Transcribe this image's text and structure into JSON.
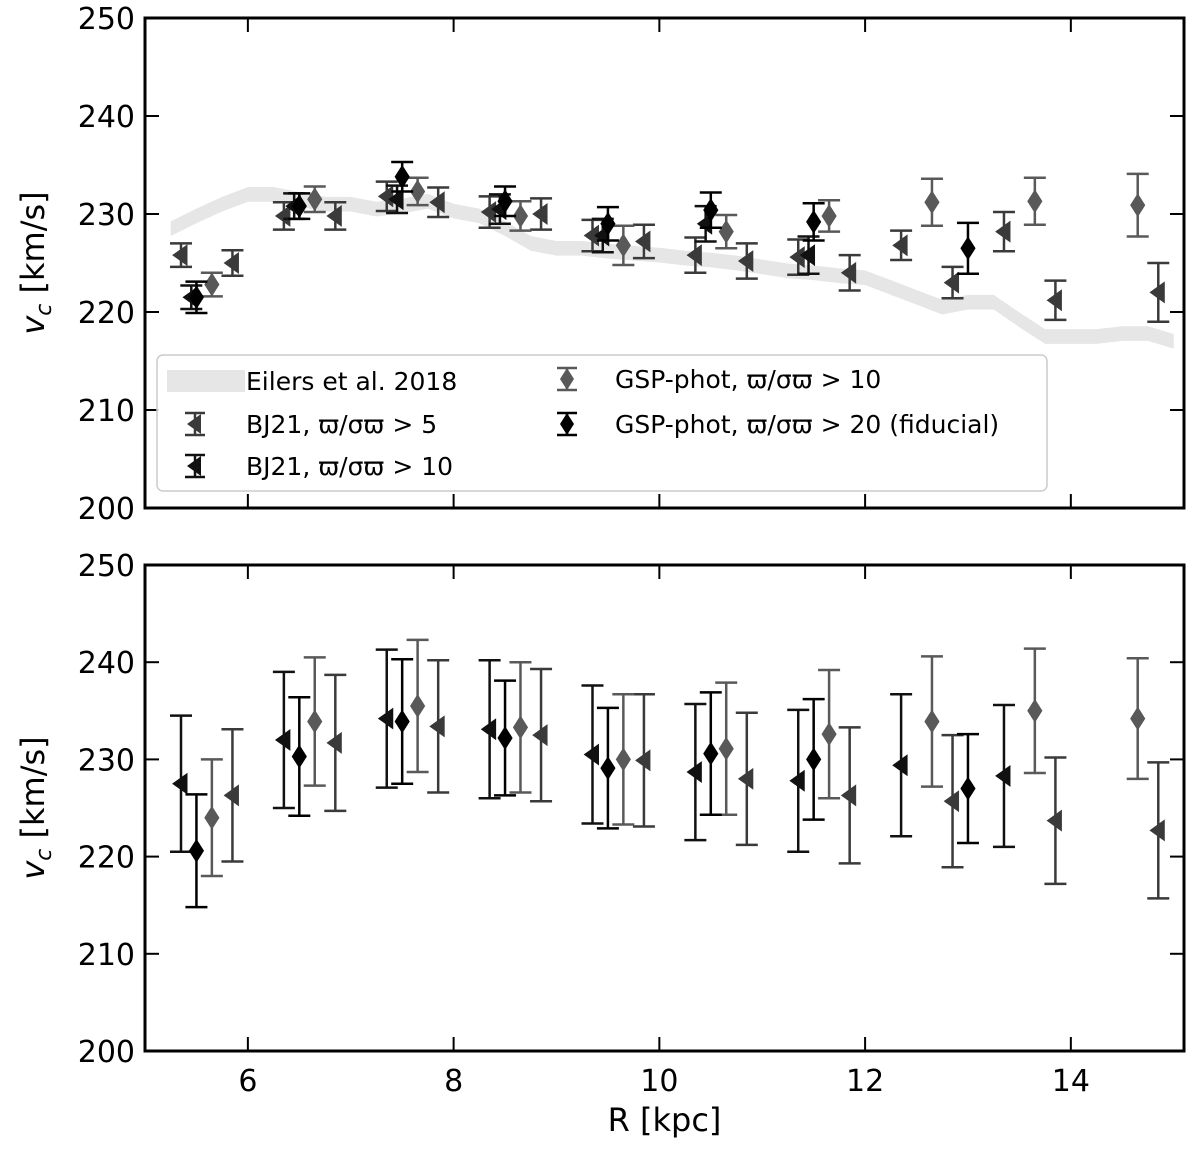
{
  "chart_data": [
    {
      "type": "scatter",
      "panel": "top",
      "xlabel": "",
      "ylabel_main": "v",
      "ylabel_sub": "c",
      "ylabel_unit": " [km/s]",
      "xlim": [
        5.0,
        15.1
      ],
      "ylim": [
        200,
        250
      ],
      "xticks": [
        6,
        8,
        10,
        12,
        14
      ],
      "xtick_labels_visible": false,
      "yticks": [
        200,
        210,
        220,
        230,
        240,
        250
      ],
      "grid": false,
      "legend_placement": "lower-left",
      "legend": [
        {
          "key": "eilers",
          "label": "Eilers et al. 2018"
        },
        {
          "key": "bj21_5",
          "label": "BJ21, ϖ/σϖ > 5"
        },
        {
          "key": "bj21_10",
          "label": "BJ21, ϖ/σϖ > 10"
        },
        {
          "key": "gsp_10",
          "label": "GSP-phot, ϖ/σϖ > 10"
        },
        {
          "key": "gsp_20",
          "label": "GSP-phot, ϖ/σϖ > 20 (fiducial)"
        }
      ],
      "band": {
        "key": "eilers",
        "color": "#e6e6e6",
        "x": [
          5.25,
          5.5,
          5.75,
          6.0,
          6.25,
          6.5,
          6.75,
          7.0,
          7.25,
          7.5,
          7.75,
          8.0,
          8.25,
          8.5,
          8.75,
          9.0,
          9.25,
          9.5,
          9.75,
          10.0,
          10.25,
          10.5,
          10.75,
          11.0,
          11.25,
          11.5,
          11.75,
          12.0,
          12.25,
          12.5,
          12.75,
          13.0,
          13.25,
          13.5,
          13.75,
          14.0,
          14.25,
          14.5,
          14.75,
          15.0
        ],
        "y": [
          228.5,
          229.8,
          231.0,
          232.0,
          232.0,
          231.5,
          231.0,
          231.0,
          230.5,
          230.8,
          231.3,
          230.3,
          229.8,
          228.5,
          227.0,
          226.5,
          226.5,
          226.2,
          226.0,
          225.8,
          225.5,
          225.3,
          225.0,
          224.6,
          224.2,
          224.0,
          223.7,
          223.5,
          222.5,
          221.5,
          220.5,
          221.0,
          221.0,
          219.2,
          217.5,
          217.5,
          217.5,
          217.8,
          217.8,
          217.0
        ],
        "half_width": 0.75
      },
      "series": [
        {
          "key": "bj21_5",
          "marker": "triangle-left",
          "color": "#3a3a3a",
          "x": [
            5.35,
            5.85,
            6.35,
            6.85,
            7.35,
            7.85,
            8.35,
            8.85,
            9.35,
            9.85,
            10.35,
            10.85,
            11.35,
            11.85,
            12.35,
            12.85,
            13.35,
            13.85,
            14.85
          ],
          "y": [
            225.8,
            225.0,
            229.8,
            229.8,
            231.8,
            231.2,
            230.2,
            230.0,
            227.8,
            227.2,
            225.8,
            225.2,
            225.6,
            224.0,
            226.8,
            223.0,
            228.2,
            221.2,
            222.0
          ],
          "err": [
            1.2,
            1.3,
            1.4,
            1.4,
            1.5,
            1.5,
            1.6,
            1.6,
            1.6,
            1.7,
            1.8,
            1.8,
            1.8,
            1.8,
            1.5,
            1.6,
            2.0,
            2.0,
            3.0
          ]
        },
        {
          "key": "bj21_10",
          "marker": "triangle-left",
          "color": "#111111",
          "x": [
            5.45,
            6.45,
            7.45,
            8.45,
            9.45,
            10.45,
            11.45
          ],
          "y": [
            221.5,
            230.8,
            231.5,
            230.5,
            227.8,
            229.0,
            225.8
          ],
          "err": [
            1.2,
            1.3,
            1.4,
            1.5,
            1.7,
            1.8,
            1.9
          ]
        },
        {
          "key": "gsp_10",
          "marker": "diamond",
          "color": "#595959",
          "x": [
            5.65,
            6.65,
            7.65,
            8.65,
            9.65,
            10.65,
            11.65,
            12.65,
            13.65,
            14.65
          ],
          "y": [
            222.8,
            231.5,
            232.3,
            229.8,
            226.8,
            228.2,
            229.8,
            231.2,
            231.3,
            230.9
          ],
          "err": [
            1.2,
            1.3,
            1.4,
            1.5,
            2.0,
            1.7,
            1.6,
            2.4,
            2.4,
            3.2
          ]
        },
        {
          "key": "gsp_20",
          "marker": "diamond",
          "color": "#000000",
          "x": [
            5.5,
            6.5,
            7.5,
            8.5,
            9.5,
            10.5,
            11.5,
            13.0
          ],
          "y": [
            221.5,
            230.8,
            233.8,
            231.3,
            229.0,
            230.4,
            229.2,
            226.5
          ],
          "err": [
            1.6,
            1.3,
            1.5,
            1.5,
            1.7,
            1.8,
            1.9,
            2.6
          ]
        }
      ]
    },
    {
      "type": "scatter",
      "panel": "bottom",
      "xlabel": "R [kpc]",
      "ylabel_main": "v",
      "ylabel_sub": "c",
      "ylabel_unit": " [km/s]",
      "xlim": [
        5.0,
        15.1
      ],
      "ylim": [
        200,
        250
      ],
      "xticks": [
        6,
        8,
        10,
        12,
        14
      ],
      "xtick_labels": [
        "6",
        "8",
        "10",
        "12",
        "14"
      ],
      "yticks": [
        200,
        210,
        220,
        230,
        240,
        250
      ],
      "grid": false,
      "series": [
        {
          "key": "bj21_5",
          "marker": "triangle-left",
          "color": "#3a3a3a",
          "x": [
            5.85,
            6.85,
            7.85,
            8.85,
            9.85,
            10.85,
            11.85,
            12.85,
            13.85,
            14.85
          ],
          "y": [
            226.3,
            231.7,
            233.4,
            232.5,
            229.9,
            228.0,
            226.3,
            225.7,
            223.7,
            222.7
          ],
          "err": [
            6.8,
            7.0,
            6.8,
            6.8,
            6.8,
            6.8,
            7.0,
            6.8,
            6.5,
            7.0
          ]
        },
        {
          "key": "bj21_10",
          "marker": "triangle-left",
          "color": "#111111",
          "x": [
            5.35,
            6.35,
            7.35,
            8.35,
            9.35,
            10.35,
            11.35,
            12.35,
            13.35
          ],
          "y": [
            227.5,
            232.0,
            234.2,
            233.1,
            230.5,
            228.7,
            227.8,
            229.4,
            228.3
          ],
          "err": [
            7.0,
            7.0,
            7.1,
            7.1,
            7.1,
            7.0,
            7.3,
            7.3,
            7.3
          ]
        },
        {
          "key": "gsp_10",
          "marker": "diamond",
          "color": "#595959",
          "x": [
            5.65,
            6.65,
            7.65,
            8.65,
            9.65,
            10.65,
            11.65,
            12.65,
            13.65,
            14.65
          ],
          "y": [
            224.0,
            233.9,
            235.5,
            233.3,
            230.0,
            231.1,
            232.6,
            233.9,
            235.0,
            234.2
          ],
          "err": [
            6.0,
            6.6,
            6.8,
            6.7,
            6.7,
            6.8,
            6.6,
            6.7,
            6.4,
            6.2
          ]
        },
        {
          "key": "gsp_20",
          "marker": "diamond",
          "color": "#000000",
          "x": [
            5.5,
            6.5,
            7.5,
            8.5,
            9.5,
            10.5,
            11.5,
            13.0
          ],
          "y": [
            220.6,
            230.3,
            233.9,
            232.2,
            229.1,
            230.6,
            230.0,
            227.0
          ],
          "err": [
            5.8,
            6.1,
            6.4,
            5.9,
            6.2,
            6.3,
            6.2,
            5.6
          ]
        }
      ]
    }
  ]
}
